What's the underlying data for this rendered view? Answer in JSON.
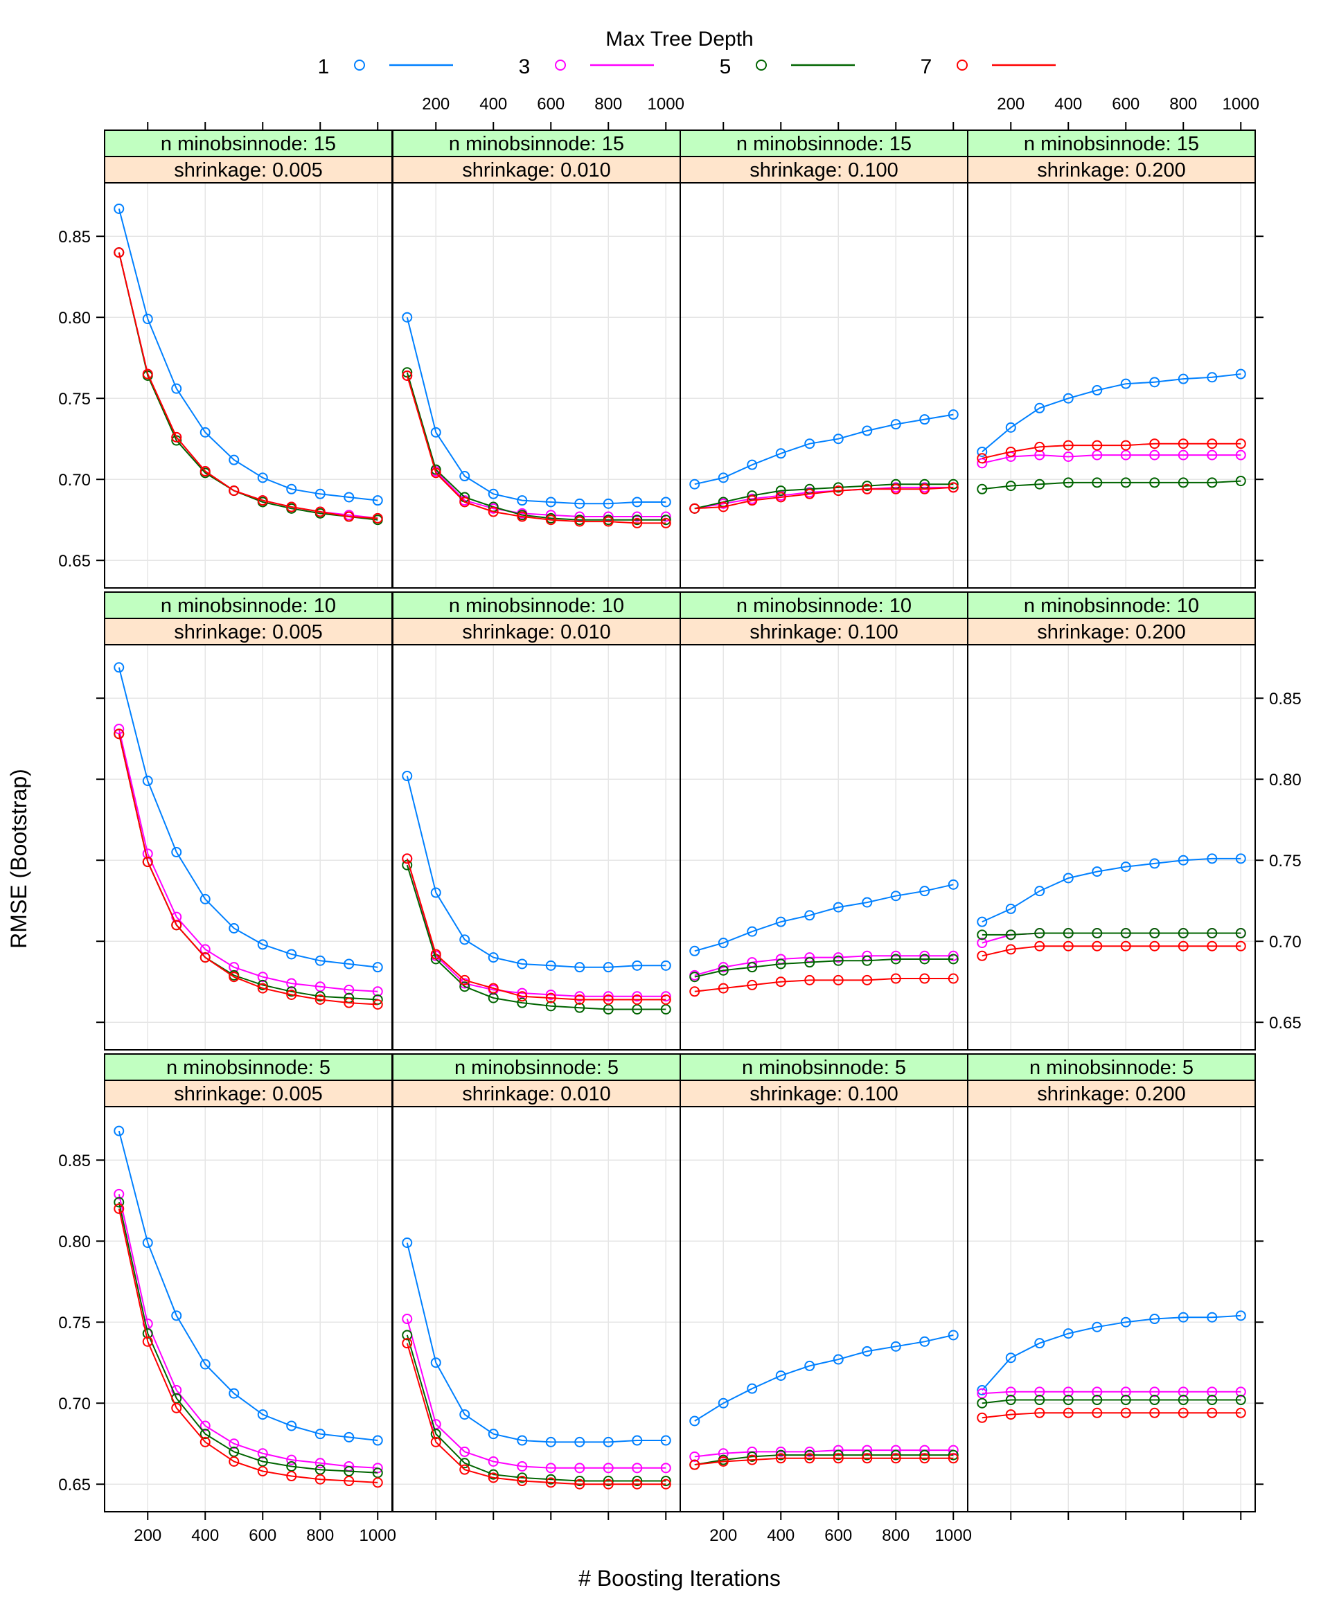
{
  "legend": {
    "title": "Max Tree Depth",
    "items": [
      {
        "label": "1",
        "color": "#0080ff"
      },
      {
        "label": "3",
        "color": "#ff00ff"
      },
      {
        "label": "5",
        "color": "#006400"
      },
      {
        "label": "7",
        "color": "#ff0000"
      }
    ]
  },
  "colors": {
    "strip_top": "#c1ffc1",
    "strip_bottom": "#ffe5cc",
    "grid": "#e6e6e6"
  },
  "chart_data": {
    "type": "line",
    "xlabel": "# Boosting Iterations",
    "ylabel": "RMSE (Bootstrap)",
    "x": [
      100,
      200,
      300,
      400,
      500,
      600,
      700,
      800,
      900,
      1000
    ],
    "xlim": [
      50,
      1050
    ],
    "ylim": [
      0.633,
      0.883
    ],
    "x_ticks": [
      200,
      400,
      600,
      800,
      1000
    ],
    "y_ticks": [
      0.65,
      0.7,
      0.75,
      0.8,
      0.85
    ],
    "y_tick_labels": [
      "0.65",
      "0.70",
      "0.75",
      "0.80",
      "0.85"
    ],
    "grid": true,
    "legend_position": "top",
    "series_names": [
      "1",
      "3",
      "5",
      "7"
    ],
    "panels": [
      {
        "strip_top": "n minobsinnode: 15",
        "strip_bottom": "shrinkage: 0.005",
        "series": [
          [
            0.867,
            0.799,
            0.756,
            0.729,
            0.712,
            0.701,
            0.694,
            0.691,
            0.689,
            0.687
          ],
          [
            0.84,
            0.765,
            0.726,
            0.705,
            0.693,
            0.687,
            0.683,
            0.68,
            0.678,
            0.676
          ],
          [
            0.84,
            0.764,
            0.724,
            0.704,
            0.693,
            0.686,
            0.682,
            0.679,
            0.677,
            0.675
          ],
          [
            0.84,
            0.765,
            0.726,
            0.705,
            0.693,
            0.687,
            0.683,
            0.68,
            0.677,
            0.676
          ]
        ]
      },
      {
        "strip_top": "n minobsinnode: 15",
        "strip_bottom": "shrinkage: 0.010",
        "series": [
          [
            0.8,
            0.729,
            0.702,
            0.691,
            0.687,
            0.686,
            0.685,
            0.685,
            0.686,
            0.686
          ],
          [
            0.764,
            0.705,
            0.687,
            0.682,
            0.679,
            0.678,
            0.677,
            0.677,
            0.677,
            0.677
          ],
          [
            0.766,
            0.706,
            0.689,
            0.683,
            0.678,
            0.676,
            0.675,
            0.675,
            0.675,
            0.675
          ],
          [
            0.764,
            0.704,
            0.686,
            0.68,
            0.677,
            0.675,
            0.674,
            0.674,
            0.673,
            0.673
          ]
        ]
      },
      {
        "strip_top": "n minobsinnode: 15",
        "strip_bottom": "shrinkage: 0.100",
        "series": [
          [
            0.697,
            0.701,
            0.709,
            0.716,
            0.722,
            0.725,
            0.73,
            0.734,
            0.737,
            0.74
          ],
          [
            0.682,
            0.685,
            0.688,
            0.69,
            0.692,
            0.693,
            0.694,
            0.695,
            0.695,
            0.695
          ],
          [
            0.682,
            0.686,
            0.69,
            0.693,
            0.694,
            0.695,
            0.696,
            0.697,
            0.697,
            0.697
          ],
          [
            0.682,
            0.683,
            0.687,
            0.689,
            0.691,
            0.693,
            0.694,
            0.694,
            0.694,
            0.695
          ]
        ]
      },
      {
        "strip_top": "n minobsinnode: 15",
        "strip_bottom": "shrinkage: 0.200",
        "series": [
          [
            0.717,
            0.732,
            0.744,
            0.75,
            0.755,
            0.759,
            0.76,
            0.762,
            0.763,
            0.765
          ],
          [
            0.71,
            0.714,
            0.715,
            0.714,
            0.715,
            0.715,
            0.715,
            0.715,
            0.715,
            0.715
          ],
          [
            0.694,
            0.696,
            0.697,
            0.698,
            0.698,
            0.698,
            0.698,
            0.698,
            0.698,
            0.699
          ],
          [
            0.713,
            0.717,
            0.72,
            0.721,
            0.721,
            0.721,
            0.722,
            0.722,
            0.722,
            0.722
          ]
        ]
      },
      {
        "strip_top": "n minobsinnode: 10",
        "strip_bottom": "shrinkage: 0.005",
        "series": [
          [
            0.869,
            0.799,
            0.755,
            0.726,
            0.708,
            0.698,
            0.692,
            0.688,
            0.686,
            0.684
          ],
          [
            0.831,
            0.754,
            0.715,
            0.695,
            0.684,
            0.678,
            0.674,
            0.672,
            0.67,
            0.669
          ],
          [
            0.828,
            0.749,
            0.71,
            0.69,
            0.679,
            0.673,
            0.669,
            0.666,
            0.665,
            0.664
          ],
          [
            0.828,
            0.749,
            0.71,
            0.69,
            0.678,
            0.671,
            0.667,
            0.664,
            0.662,
            0.661
          ]
        ]
      },
      {
        "strip_top": "n minobsinnode: 10",
        "strip_bottom": "shrinkage: 0.010",
        "series": [
          [
            0.802,
            0.73,
            0.701,
            0.69,
            0.686,
            0.685,
            0.684,
            0.684,
            0.685,
            0.685
          ],
          [
            0.751,
            0.691,
            0.674,
            0.67,
            0.668,
            0.667,
            0.666,
            0.666,
            0.666,
            0.666
          ],
          [
            0.747,
            0.689,
            0.672,
            0.665,
            0.662,
            0.66,
            0.659,
            0.658,
            0.658,
            0.658
          ],
          [
            0.751,
            0.692,
            0.676,
            0.671,
            0.666,
            0.665,
            0.664,
            0.664,
            0.664,
            0.664
          ]
        ]
      },
      {
        "strip_top": "n minobsinnode: 10",
        "strip_bottom": "shrinkage: 0.100",
        "series": [
          [
            0.694,
            0.699,
            0.706,
            0.712,
            0.716,
            0.721,
            0.724,
            0.728,
            0.731,
            0.735
          ],
          [
            0.679,
            0.684,
            0.687,
            0.689,
            0.69,
            0.69,
            0.691,
            0.691,
            0.691,
            0.691
          ],
          [
            0.678,
            0.682,
            0.684,
            0.686,
            0.687,
            0.688,
            0.688,
            0.689,
            0.689,
            0.689
          ],
          [
            0.669,
            0.671,
            0.673,
            0.675,
            0.676,
            0.676,
            0.676,
            0.677,
            0.677,
            0.677
          ]
        ]
      },
      {
        "strip_top": "n minobsinnode: 10",
        "strip_bottom": "shrinkage: 0.200",
        "series": [
          [
            0.712,
            0.72,
            0.731,
            0.739,
            0.743,
            0.746,
            0.748,
            0.75,
            0.751,
            0.751
          ],
          [
            0.699,
            0.704,
            0.705,
            0.705,
            0.705,
            0.705,
            0.705,
            0.705,
            0.705,
            0.705
          ],
          [
            0.704,
            0.704,
            0.705,
            0.705,
            0.705,
            0.705,
            0.705,
            0.705,
            0.705,
            0.705
          ],
          [
            0.691,
            0.695,
            0.697,
            0.697,
            0.697,
            0.697,
            0.697,
            0.697,
            0.697,
            0.697
          ]
        ]
      },
      {
        "strip_top": "n minobsinnode:  5",
        "strip_bottom": "shrinkage: 0.005",
        "series": [
          [
            0.868,
            0.799,
            0.754,
            0.724,
            0.706,
            0.693,
            0.686,
            0.681,
            0.679,
            0.677
          ],
          [
            0.829,
            0.749,
            0.708,
            0.686,
            0.675,
            0.669,
            0.665,
            0.663,
            0.661,
            0.66
          ],
          [
            0.824,
            0.743,
            0.703,
            0.681,
            0.67,
            0.664,
            0.661,
            0.659,
            0.658,
            0.657
          ],
          [
            0.82,
            0.738,
            0.697,
            0.676,
            0.664,
            0.658,
            0.655,
            0.653,
            0.652,
            0.651
          ]
        ]
      },
      {
        "strip_top": "n minobsinnode:  5",
        "strip_bottom": "shrinkage: 0.010",
        "series": [
          [
            0.799,
            0.725,
            0.693,
            0.681,
            0.677,
            0.676,
            0.676,
            0.676,
            0.677,
            0.677
          ],
          [
            0.752,
            0.687,
            0.67,
            0.664,
            0.661,
            0.66,
            0.66,
            0.66,
            0.66,
            0.66
          ],
          [
            0.742,
            0.681,
            0.663,
            0.656,
            0.654,
            0.653,
            0.652,
            0.652,
            0.652,
            0.652
          ],
          [
            0.737,
            0.676,
            0.659,
            0.654,
            0.652,
            0.651,
            0.65,
            0.65,
            0.65,
            0.65
          ]
        ]
      },
      {
        "strip_top": "n minobsinnode:  5",
        "strip_bottom": "shrinkage: 0.100",
        "series": [
          [
            0.689,
            0.7,
            0.709,
            0.717,
            0.723,
            0.727,
            0.732,
            0.735,
            0.738,
            0.742
          ],
          [
            0.667,
            0.669,
            0.67,
            0.67,
            0.67,
            0.671,
            0.671,
            0.671,
            0.671,
            0.671
          ],
          [
            0.662,
            0.665,
            0.667,
            0.668,
            0.668,
            0.668,
            0.668,
            0.668,
            0.668,
            0.668
          ],
          [
            0.662,
            0.664,
            0.665,
            0.666,
            0.666,
            0.666,
            0.666,
            0.666,
            0.666,
            0.666
          ]
        ]
      },
      {
        "strip_top": "n minobsinnode:  5",
        "strip_bottom": "shrinkage: 0.200",
        "series": [
          [
            0.708,
            0.728,
            0.737,
            0.743,
            0.747,
            0.75,
            0.752,
            0.753,
            0.753,
            0.754
          ],
          [
            0.706,
            0.707,
            0.707,
            0.707,
            0.707,
            0.707,
            0.707,
            0.707,
            0.707,
            0.707
          ],
          [
            0.7,
            0.702,
            0.702,
            0.702,
            0.702,
            0.702,
            0.702,
            0.702,
            0.702,
            0.702
          ],
          [
            0.691,
            0.693,
            0.694,
            0.694,
            0.694,
            0.694,
            0.694,
            0.694,
            0.694,
            0.694
          ]
        ]
      }
    ]
  }
}
